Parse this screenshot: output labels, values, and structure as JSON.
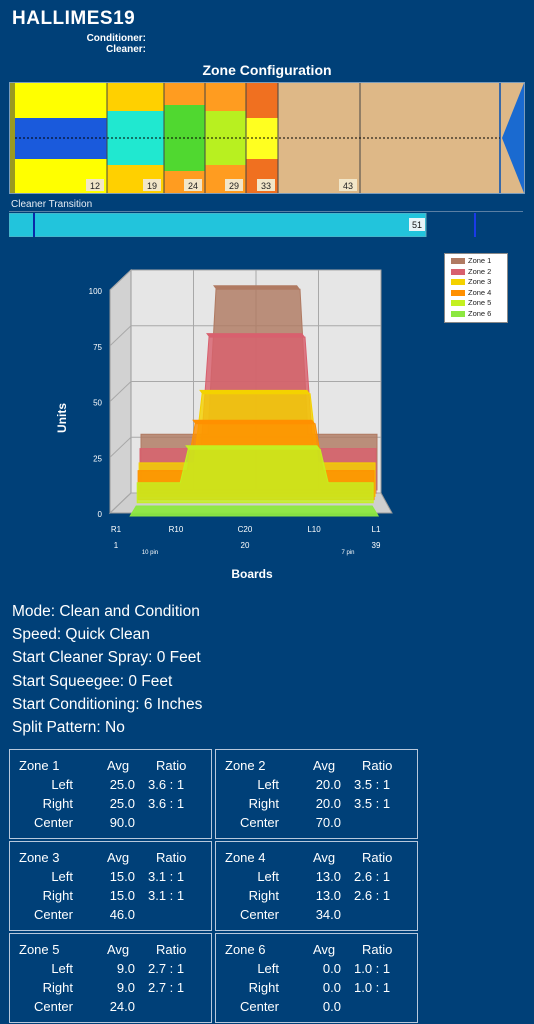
{
  "header": {
    "title": "HALLIMES19",
    "conditioner_label": "Conditioner:",
    "cleaner_label": "Cleaner:"
  },
  "zone_configuration": {
    "title": "Zone Configuration",
    "markers": [
      "12",
      "19",
      "24",
      "29",
      "33",
      "43"
    ]
  },
  "cleaner_transition": {
    "label": "Cleaner Transition",
    "value": "51"
  },
  "chart_data": {
    "type": "area",
    "title": "",
    "xlabel": "Boards",
    "ylabel": "Units",
    "ylim": [
      0,
      100
    ],
    "y_ticks": [
      0,
      25,
      50,
      75,
      100
    ],
    "x_tick_labels": [
      "R1",
      "R10",
      "C20",
      "L10",
      "L1"
    ],
    "x_sub_labels": [
      "1",
      "10 pin",
      "20",
      "7 pin",
      "39"
    ],
    "legend_position": "top-right",
    "series": [
      {
        "name": "Zone 1",
        "color": "#b07a62",
        "center": 90.0,
        "left": 25.0,
        "right": 25.0
      },
      {
        "name": "Zone 2",
        "color": "#d8606e",
        "center": 70.0,
        "left": 20.0,
        "right": 20.0
      },
      {
        "name": "Zone 3",
        "color": "#f4d200",
        "center": 46.0,
        "left": 15.0,
        "right": 15.0
      },
      {
        "name": "Zone 4",
        "color": "#ff9000",
        "center": 34.0,
        "left": 13.0,
        "right": 13.0
      },
      {
        "name": "Zone 5",
        "color": "#c4f020",
        "center": 24.0,
        "left": 9.0,
        "right": 9.0
      },
      {
        "name": "Zone 6",
        "color": "#8ce840",
        "center": 0.0,
        "left": 0.0,
        "right": 0.0
      }
    ]
  },
  "info": {
    "mode": "Mode: Clean and Condition",
    "speed": "Speed: Quick Clean",
    "start_cleaner_spray": "Start Cleaner Spray: 0 Feet",
    "start_squeegee": "Start Squeegee: 0 Feet",
    "start_conditioning": "Start Conditioning: 6 Inches",
    "split_pattern": "Split Pattern: No"
  },
  "table_headers": {
    "avg": "Avg",
    "ratio": "Ratio",
    "left": "Left",
    "right": "Right",
    "center": "Center"
  },
  "zones": [
    {
      "name": "Zone 1",
      "left_avg": "25.0",
      "left_ratio": "3.6 : 1",
      "right_avg": "25.0",
      "right_ratio": "3.6 : 1",
      "center_avg": "90.0"
    },
    {
      "name": "Zone 2",
      "left_avg": "20.0",
      "left_ratio": "3.5 : 1",
      "right_avg": "20.0",
      "right_ratio": "3.5 : 1",
      "center_avg": "70.0"
    },
    {
      "name": "Zone 3",
      "left_avg": "15.0",
      "left_ratio": "3.1 : 1",
      "right_avg": "15.0",
      "right_ratio": "3.1 : 1",
      "center_avg": "46.0"
    },
    {
      "name": "Zone 4",
      "left_avg": "13.0",
      "left_ratio": "2.6 : 1",
      "right_avg": "13.0",
      "right_ratio": "2.6 : 1",
      "center_avg": "34.0"
    },
    {
      "name": "Zone 5",
      "left_avg": "9.0",
      "left_ratio": "2.7 : 1",
      "right_avg": "9.0",
      "right_ratio": "2.7 : 1",
      "center_avg": "24.0"
    },
    {
      "name": "Zone 6",
      "left_avg": "0.0",
      "left_ratio": "1.0 : 1",
      "right_avg": "0.0",
      "right_ratio": "1.0 : 1",
      "center_avg": "0.0"
    }
  ]
}
